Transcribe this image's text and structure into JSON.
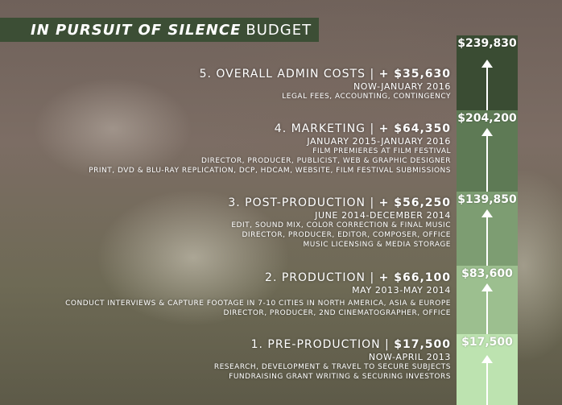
{
  "title": {
    "italic_part": "IN PURSUIT OF SILENCE",
    "plain_part": "BUDGET"
  },
  "phases": [
    {
      "heading": "5. OVERALL ADMIN COSTS |",
      "amount_added": "+ $35,630",
      "dates": "NOW-JANUARY 2016",
      "details": [
        "LEGAL FEES, ACCOUNTING, CONTINGENCY"
      ],
      "cumulative": "$239,830",
      "color": "#3a4c33"
    },
    {
      "heading": "4. MARKETING |",
      "amount_added": "+ $64,350",
      "dates": "JANUARY 2015-JANUARY 2016",
      "details": [
        "FILM PREMIERES AT FILM FESTIVAL",
        "DIRECTOR, PRODUCER, PUBLICIST, WEB & GRAPHIC DESIGNER",
        "PRINT, DVD & BLU-RAY REPLICATION, DCP, HDCAM, WEBSITE, FILM FESTIVAL SUBMISSIONS"
      ],
      "cumulative": "$204,200",
      "color": "#5e7a55"
    },
    {
      "heading": "3. POST-PRODUCTION |",
      "amount_added": "+ $56,250",
      "dates": "JUNE 2014-DECEMBER 2014",
      "details": [
        "EDIT, SOUND MIX, COLOR CORRECTION & FINAL MUSIC",
        "DIRECTOR, PRODUCER, EDITOR, COMPOSER, OFFICE",
        "MUSIC LICENSING & MEDIA STORAGE"
      ],
      "cumulative": "$139,850",
      "color": "#7d9d72"
    },
    {
      "heading": "2. PRODUCTION |",
      "amount_added": "+ $66,100",
      "dates": "MAY 2013-MAY 2014",
      "details": [
        "CONDUCT INTERVIEWS & CAPTURE FOOTAGE IN 7-10 CITIES IN NORTH AMERICA, ASIA & EUROPE",
        "DIRECTOR, PRODUCER, 2ND CINEMATOGRAPHER, OFFICE"
      ],
      "cumulative": "$83,600",
      "color": "#9cbf8f"
    },
    {
      "heading": "1. PRE-PRODUCTION |",
      "amount_added": "$17,500",
      "dates": "NOW-APRIL 2013",
      "details": [
        "RESEARCH, DEVELOPMENT & TRAVEL TO SECURE SUBJECTS",
        "FUNDRAISING GRANT WRITING & SECURING INVESTORS"
      ],
      "cumulative": "$17,500",
      "color": "#bde3b0"
    }
  ]
}
